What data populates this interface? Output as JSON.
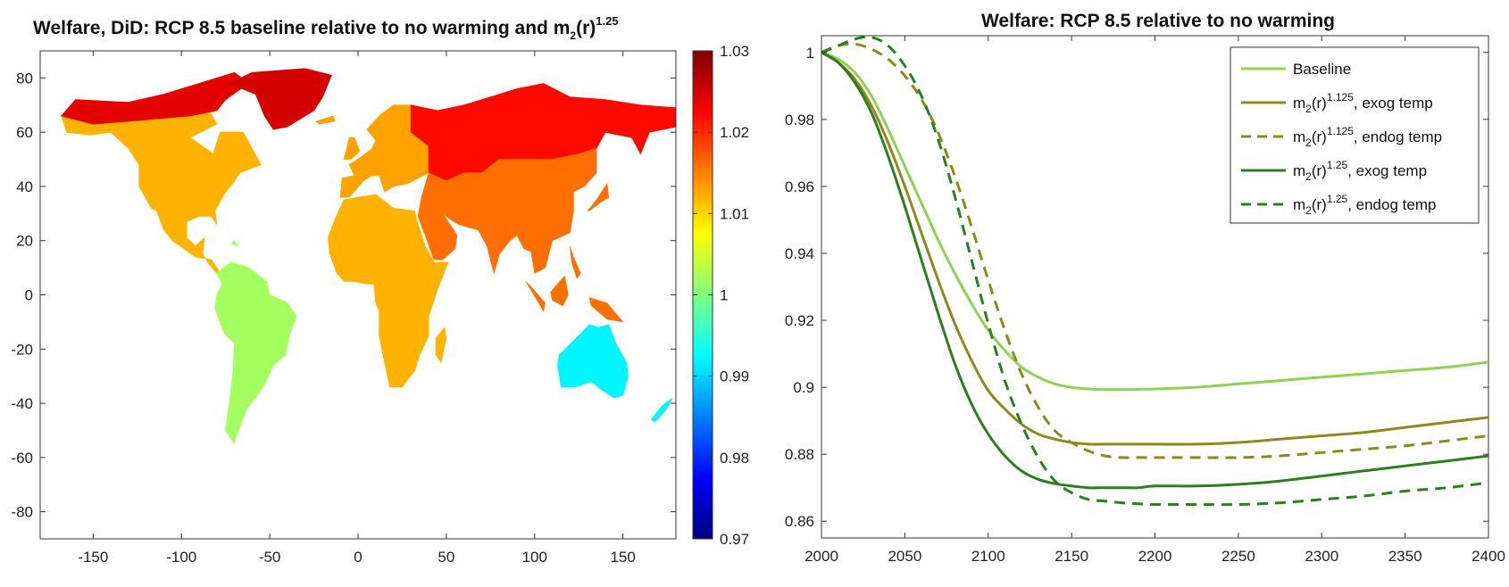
{
  "figure": {
    "left_title": "Welfare, DiD: RCP 8.5 baseline relative to no warming and m",
    "left_title_sub": "2",
    "left_title_r": "(r)",
    "left_title_exp": "1.25",
    "right_title": "Welfare: RCP 8.5 relative to no warming"
  },
  "legend": {
    "items": [
      {
        "pre": "Baseline",
        "sub": "",
        "mid": "",
        "exp": "",
        "post": ""
      },
      {
        "pre": "m",
        "sub": "2",
        "mid": "(r)",
        "exp": "1.125",
        "post": ", exog temp"
      },
      {
        "pre": "m",
        "sub": "2",
        "mid": "(r)",
        "exp": "1.125",
        "post": ", endog temp"
      },
      {
        "pre": "m",
        "sub": "2",
        "mid": "(r)",
        "exp": "1.25",
        "post": ", exog temp"
      },
      {
        "pre": "m",
        "sub": "2",
        "mid": "(r)",
        "exp": "1.25",
        "post": ", endog temp"
      }
    ]
  },
  "chart_data": [
    {
      "type": "heatmap",
      "title": "Welfare, DiD: RCP 8.5 baseline relative to no warming and m2(r)^1.25",
      "xlabel": "",
      "ylabel": "",
      "xlim": [
        -180,
        180
      ],
      "ylim": [
        -90,
        90
      ],
      "x_ticks": [
        "-150",
        "-100",
        "-50",
        "0",
        "50",
        "100",
        "150"
      ],
      "x_tick_values": [
        -150,
        -100,
        -50,
        0,
        50,
        100,
        150
      ],
      "y_ticks": [
        "80",
        "60",
        "40",
        "20",
        "0",
        "-20",
        "-40",
        "-60",
        "-80"
      ],
      "y_tick_values": [
        80,
        60,
        40,
        20,
        0,
        -20,
        -40,
        -60,
        -80
      ],
      "colorbar": {
        "min": 0.97,
        "max": 1.03,
        "ticks": [
          "1.03",
          "1.02",
          "1.01",
          "1",
          "0.99",
          "0.98",
          "0.97"
        ],
        "tick_values": [
          1.03,
          1.02,
          1.01,
          1.0,
          0.99,
          0.98,
          0.97
        ],
        "colormap": "jet"
      },
      "regions": [
        {
          "name": "North America",
          "value": 1.012
        },
        {
          "name": "Arctic Canada / Alaska",
          "value": 1.024
        },
        {
          "name": "Greenland",
          "value": 1.025
        },
        {
          "name": "South America",
          "value": 1.002
        },
        {
          "name": "Europe",
          "value": 1.013
        },
        {
          "name": "Northern Eurasia",
          "value": 1.022
        },
        {
          "name": "China / South Asia",
          "value": 1.016
        },
        {
          "name": "Africa",
          "value": 1.012
        },
        {
          "name": "Australia",
          "value": 0.992
        }
      ]
    },
    {
      "type": "line",
      "title": "Welfare: RCP 8.5 relative to no warming",
      "xlabel": "",
      "ylabel": "",
      "xlim": [
        2000,
        2400
      ],
      "ylim": [
        0.855,
        1.005
      ],
      "x_ticks": [
        2000,
        2050,
        2100,
        2150,
        2200,
        2250,
        2300,
        2350,
        2400
      ],
      "y_ticks": [
        1,
        0.98,
        0.96,
        0.94,
        0.92,
        0.9,
        0.88,
        0.86
      ],
      "y_tick_labels": [
        "1",
        "0.98",
        "0.96",
        "0.94",
        "0.92",
        "0.9",
        "0.88",
        "0.86"
      ],
      "grid": false,
      "legend_position": "top-right",
      "x": [
        2000,
        2010,
        2020,
        2030,
        2040,
        2050,
        2060,
        2070,
        2080,
        2090,
        2100,
        2110,
        2120,
        2130,
        2140,
        2150,
        2160,
        2170,
        2180,
        2190,
        2200,
        2225,
        2250,
        2275,
        2300,
        2325,
        2350,
        2375,
        2400
      ],
      "series": [
        {
          "name": "Baseline",
          "color": "#92d050",
          "dash": "solid",
          "values": [
            1.0,
            0.998,
            0.994,
            0.987,
            0.977,
            0.966,
            0.955,
            0.944,
            0.934,
            0.925,
            0.917,
            0.911,
            0.906,
            0.903,
            0.901,
            0.9,
            0.8995,
            0.8993,
            0.8993,
            0.8994,
            0.8995,
            0.9,
            0.901,
            0.902,
            0.903,
            0.904,
            0.905,
            0.906,
            0.9075
          ]
        },
        {
          "name": "m2(r)^1.125, exog temp",
          "color": "#8c8a1e",
          "dash": "solid",
          "values": [
            1.0,
            0.997,
            0.992,
            0.984,
            0.973,
            0.96,
            0.946,
            0.932,
            0.919,
            0.908,
            0.899,
            0.8935,
            0.889,
            0.886,
            0.8845,
            0.8835,
            0.883,
            0.883,
            0.883,
            0.883,
            0.883,
            0.883,
            0.8835,
            0.8845,
            0.8855,
            0.8865,
            0.888,
            0.8895,
            0.891
          ]
        },
        {
          "name": "m2(r)^1.125, endog temp",
          "color": "#8c8a1e",
          "dash": "dashed",
          "values": [
            1.0,
            1.002,
            1.0025,
            1.001,
            0.998,
            0.993,
            0.986,
            0.976,
            0.963,
            0.948,
            0.932,
            0.917,
            0.904,
            0.894,
            0.887,
            0.8835,
            0.881,
            0.8795,
            0.879,
            0.879,
            0.879,
            0.879,
            0.879,
            0.8795,
            0.8805,
            0.8815,
            0.8825,
            0.884,
            0.8855
          ]
        },
        {
          "name": "m2(r)^1.25, exog temp",
          "color": "#2e7d1f",
          "dash": "solid",
          "values": [
            1.0,
            0.997,
            0.991,
            0.982,
            0.969,
            0.954,
            0.938,
            0.922,
            0.907,
            0.895,
            0.886,
            0.8795,
            0.875,
            0.8725,
            0.8712,
            0.8705,
            0.87,
            0.87,
            0.87,
            0.87,
            0.8705,
            0.8705,
            0.871,
            0.872,
            0.8735,
            0.875,
            0.8765,
            0.878,
            0.8795
          ]
        },
        {
          "name": "m2(r)^1.25, endog temp",
          "color": "#2e7d1f",
          "dash": "dashed",
          "values": [
            1.0,
            1.002,
            1.004,
            1.0045,
            1.002,
            0.996,
            0.987,
            0.974,
            0.957,
            0.938,
            0.919,
            0.902,
            0.889,
            0.879,
            0.872,
            0.8685,
            0.8665,
            0.866,
            0.8655,
            0.8652,
            0.865,
            0.865,
            0.865,
            0.8655,
            0.8665,
            0.8675,
            0.869,
            0.87,
            0.8715
          ]
        }
      ]
    }
  ]
}
